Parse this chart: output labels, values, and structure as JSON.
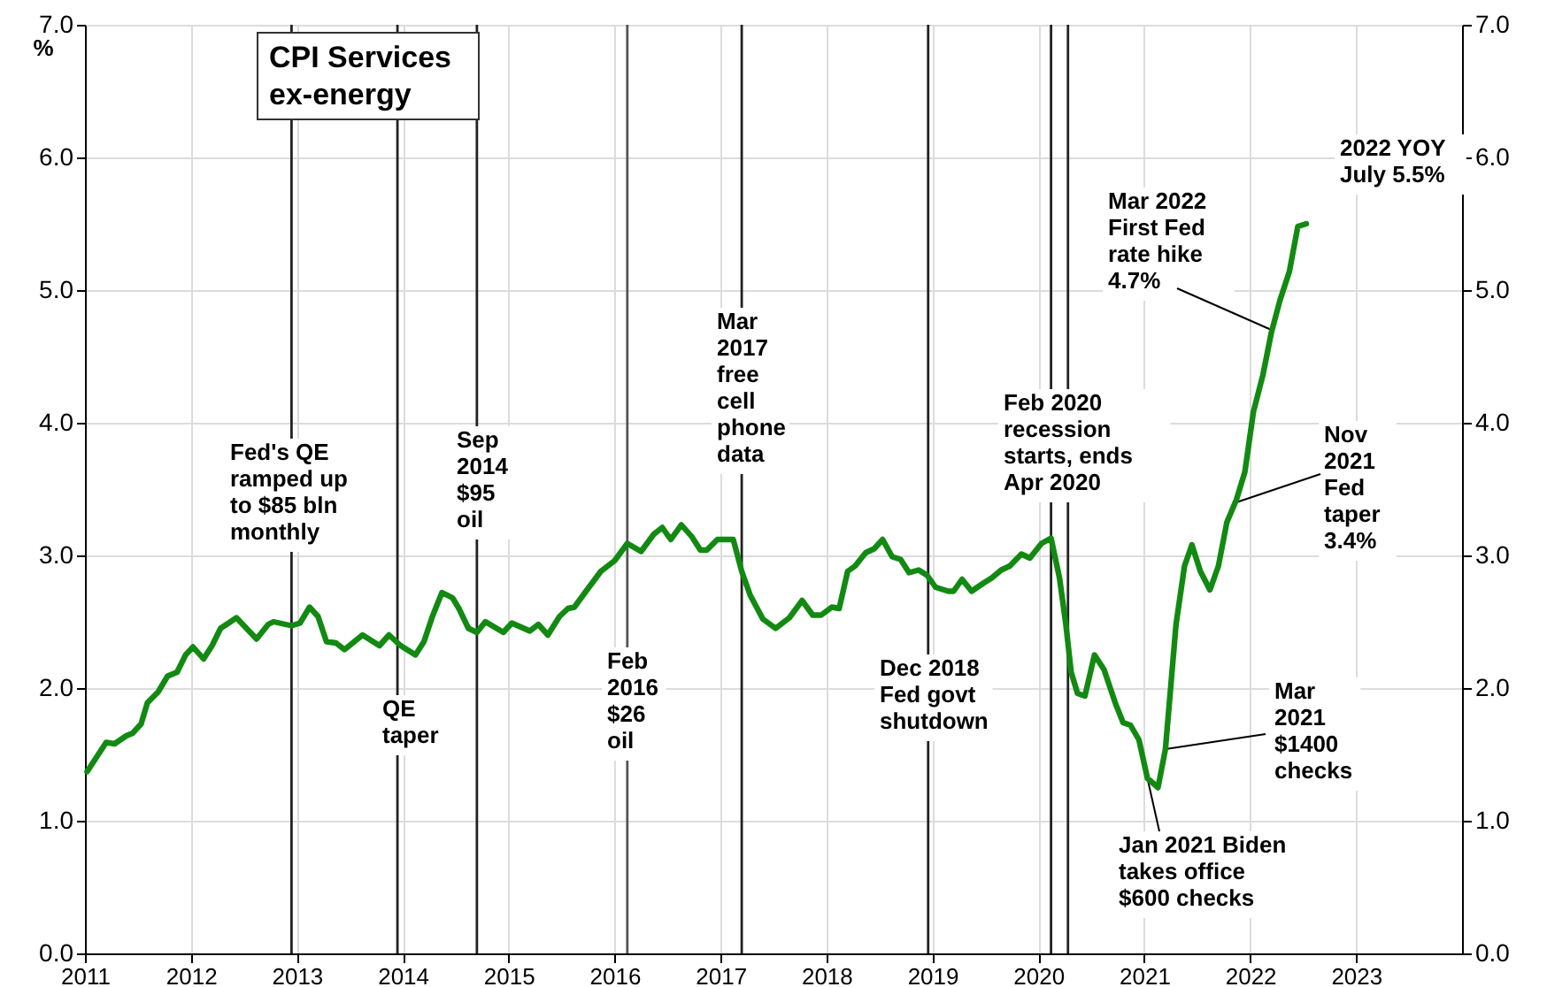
{
  "chart_data": {
    "type": "line",
    "title": "CPI Services ex-energy",
    "ylabel": "%",
    "x": [
      2011.02,
      2011.2,
      2011.28,
      2011.39,
      2011.45,
      2011.53,
      2011.59,
      2011.69,
      2011.78,
      2011.87,
      2011.95,
      2012.02,
      2012.12,
      2012.2,
      2012.28,
      2012.43,
      2012.62,
      2012.73,
      2012.78,
      2012.95,
      2013.03,
      2013.12,
      2013.2,
      2013.28,
      2013.37,
      2013.45,
      2013.62,
      2013.78,
      2013.87,
      2013.98,
      2014.12,
      2014.2,
      2014.28,
      2014.37,
      2014.47,
      2014.53,
      2014.62,
      2014.7,
      2014.78,
      2014.95,
      2015.03,
      2015.2,
      2015.28,
      2015.37,
      2015.48,
      2015.56,
      2015.62,
      2015.73,
      2015.87,
      2016.0,
      2016.12,
      2016.25,
      2016.37,
      2016.45,
      2016.53,
      2016.63,
      2016.73,
      2016.81,
      2016.87,
      2016.97,
      2017.12,
      2017.2,
      2017.28,
      2017.4,
      2017.52,
      2017.65,
      2017.77,
      2017.87,
      2017.95,
      2018.05,
      2018.12,
      2018.2,
      2018.27,
      2018.37,
      2018.45,
      2018.53,
      2018.62,
      2018.7,
      2018.78,
      2018.87,
      2018.95,
      2019.03,
      2019.15,
      2019.2,
      2019.28,
      2019.37,
      2019.48,
      2019.56,
      2019.65,
      2019.73,
      2019.84,
      2019.92,
      2020.03,
      2020.12,
      2020.2,
      2020.26,
      2020.31,
      2020.37,
      2020.44,
      2020.53,
      2020.62,
      2020.73,
      2020.8,
      2020.87,
      2020.95,
      2021.03,
      2021.13,
      2021.2,
      2021.3,
      2021.38,
      2021.45,
      2021.53,
      2021.62,
      2021.7,
      2021.78,
      2021.87,
      2021.95,
      2022.03,
      2022.12,
      2022.2,
      2022.28,
      2022.37,
      2022.45,
      2022.53
    ],
    "series": [
      {
        "color": "#128a12",
        "values": [
          1.37,
          1.59,
          1.58,
          1.64,
          1.66,
          1.73,
          1.89,
          1.97,
          2.09,
          2.12,
          2.25,
          2.31,
          2.22,
          2.32,
          2.45,
          2.53,
          2.37,
          2.48,
          2.5,
          2.47,
          2.49,
          2.61,
          2.54,
          2.35,
          2.34,
          2.29,
          2.4,
          2.32,
          2.4,
          2.32,
          2.25,
          2.35,
          2.54,
          2.72,
          2.68,
          2.6,
          2.45,
          2.42,
          2.5,
          2.42,
          2.49,
          2.43,
          2.48,
          2.4,
          2.54,
          2.6,
          2.61,
          2.73,
          2.88,
          2.96,
          3.09,
          3.03,
          3.16,
          3.21,
          3.12,
          3.23,
          3.14,
          3.04,
          3.04,
          3.12,
          3.12,
          2.88,
          2.7,
          2.52,
          2.45,
          2.53,
          2.66,
          2.55,
          2.55,
          2.61,
          2.6,
          2.88,
          2.92,
          3.02,
          3.05,
          3.12,
          2.99,
          2.97,
          2.87,
          2.89,
          2.85,
          2.76,
          2.73,
          2.73,
          2.82,
          2.73,
          2.79,
          2.83,
          2.89,
          2.92,
          3.01,
          2.98,
          3.09,
          3.13,
          2.83,
          2.48,
          2.12,
          1.96,
          1.94,
          2.25,
          2.14,
          1.88,
          1.74,
          1.72,
          1.61,
          1.32,
          1.25,
          1.54,
          2.48,
          2.92,
          3.08,
          2.88,
          2.74,
          2.92,
          3.25,
          3.42,
          3.63,
          4.08,
          4.36,
          4.68,
          4.92,
          5.14,
          5.48,
          5.5
        ]
      }
    ],
    "xlim": [
      2011,
      2024
    ],
    "xticks": [
      2011,
      2012,
      2013,
      2014,
      2015,
      2016,
      2017,
      2018,
      2019,
      2020,
      2021,
      2022,
      2023
    ],
    "ylim": [
      0,
      7
    ],
    "yticks": [
      {
        "value": 0,
        "label": "0.0"
      },
      {
        "value": 1,
        "label": "1.0"
      },
      {
        "value": 2,
        "label": "2.0"
      },
      {
        "value": 3,
        "label": "3.0"
      },
      {
        "value": 4,
        "label": "4.0"
      },
      {
        "value": 5,
        "label": "5.0"
      },
      {
        "value": 6,
        "label": "6.0"
      },
      {
        "value": 7,
        "label": "7.0"
      }
    ],
    "y2lim": [
      0,
      7
    ],
    "y2ticks": [
      {
        "value": 0,
        "label": "0.0"
      },
      {
        "value": 1,
        "label": "1.0"
      },
      {
        "value": 2,
        "label": "2.0"
      },
      {
        "value": 3,
        "label": "3.0"
      },
      {
        "value": 4,
        "label": "4.0"
      },
      {
        "value": 5,
        "label": "5.0"
      },
      {
        "value": 6,
        "label": "6.0"
      },
      {
        "value": 7,
        "label": "7.0"
      }
    ],
    "grid": true,
    "marker": "none",
    "line_style": "solid",
    "ref_lines": [
      {
        "axis": "x",
        "value": 2012.95,
        "label": "Fed's QE\nramped up\nto $85 bln\nmonthly",
        "color": "#222222"
      },
      {
        "axis": "x",
        "value": 2013.95,
        "label": "QE\ntaper",
        "color": "#222222"
      },
      {
        "axis": "x",
        "value": 2014.7,
        "label": "Sep\n2014\n$95\noil",
        "color": "#222222"
      },
      {
        "axis": "x",
        "value": 2016.12,
        "label": "Feb\n2016\n$26\noil",
        "color": "#555555"
      },
      {
        "axis": "x",
        "value": 2017.2,
        "label": "Mar\n2017\nfree\ncell\nphone\ndata",
        "color": "#222222"
      },
      {
        "axis": "x",
        "value": 2018.96,
        "label": "Dec 2018\nFed govt\nshutdown",
        "color": "#222222"
      },
      {
        "axis": "x",
        "value": 2020.12,
        "label": "Feb 2020\nrecession\nstarts, ends\nApr 2020",
        "color": "#222222"
      },
      {
        "axis": "x",
        "value": 2020.28,
        "label": null,
        "color": "#222222"
      }
    ],
    "annotations": [
      {
        "text": "Mar 2022\nFirst Fed\nrate hike\n4.7%",
        "x": 2022.2,
        "y": 4.7
      },
      {
        "text": "Nov\n2021\nFed\ntaper\n3.4%",
        "x": 2021.87,
        "y": 3.4
      },
      {
        "text": "Mar\n2021\n$1400\nchecks",
        "x": 2021.2,
        "y": 1.54
      },
      {
        "text": "Jan 2021 Biden\ntakes office\n$600 checks",
        "x": 2021.03,
        "y": 1.32
      },
      "2022 YOY\nJuly 5.5%"
    ]
  }
}
